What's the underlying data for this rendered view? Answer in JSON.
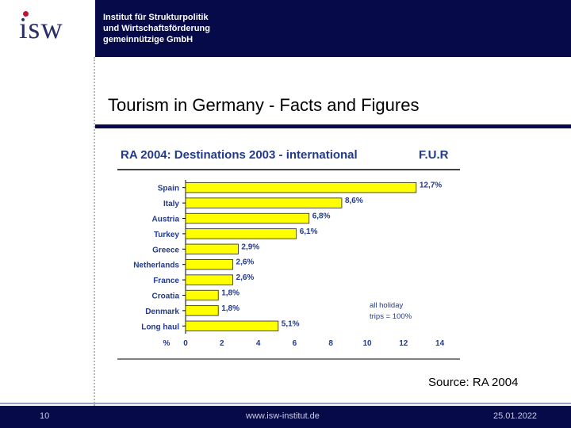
{
  "logo": {
    "text": "ISW"
  },
  "header": {
    "org_line1": "Institut für Strukturpolitik",
    "org_line2": "und Wirtschaftsförderung",
    "org_line3": "gemeinnützige GmbH"
  },
  "page_title": "Tourism in Germany - Facts and Figures",
  "source": "Source: RA 2004",
  "footer": {
    "page_number": "10",
    "url": "www.isw-institut.de",
    "date": "25.01.2022"
  },
  "colors": {
    "brand_navy": "#060a48",
    "chart_title": "#223a8c",
    "bar_fill": "#ffff00",
    "label_blue": "#223a8c"
  },
  "chart_data": {
    "type": "bar",
    "orientation": "horizontal",
    "title": "RA 2004: Destinations 2003 - international",
    "title_right": "F.U.R",
    "categories": [
      "Spain",
      "Italy",
      "Austria",
      "Turkey",
      "Greece",
      "Netherlands",
      "France",
      "Croatia",
      "Denmark",
      "Long haul"
    ],
    "values": [
      12.7,
      8.6,
      6.8,
      6.1,
      2.9,
      2.6,
      2.6,
      1.8,
      1.8,
      5.1
    ],
    "value_labels": [
      "12,7%",
      "8,6%",
      "6,8%",
      "6,1%",
      "2,9%",
      "2,6%",
      "2,6%",
      "1,8%",
      "1,8%",
      "5,1%"
    ],
    "xlabel": "%",
    "xlim": [
      0,
      14
    ],
    "xticks": [
      "0",
      "2",
      "4",
      "6",
      "8",
      "10",
      "12",
      "14"
    ],
    "annotation_line1": "all holiday",
    "annotation_line2": "trips = 100%"
  }
}
